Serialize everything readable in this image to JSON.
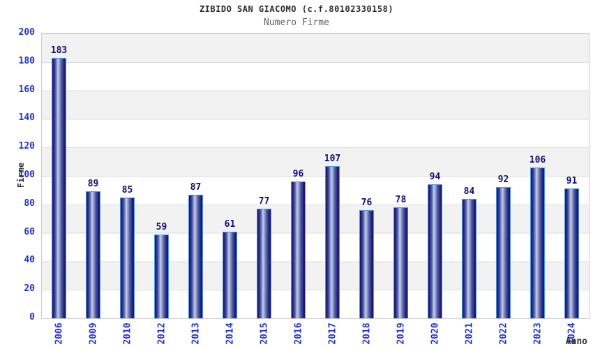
{
  "header": {
    "title": "ZIBIDO SAN GIACOMO (c.f.80102330158)",
    "subtitle": "Numero Firme"
  },
  "chart_data": {
    "type": "bar",
    "title": "ZIBIDO SAN GIACOMO (c.f.80102330158)",
    "subtitle": "Numero Firme",
    "xlabel": "Anno",
    "ylabel": "Firme",
    "categories": [
      "2006",
      "2009",
      "2010",
      "2012",
      "2013",
      "2014",
      "2015",
      "2016",
      "2017",
      "2018",
      "2019",
      "2020",
      "2021",
      "2022",
      "2023",
      "2024"
    ],
    "values": [
      183,
      89,
      85,
      59,
      87,
      61,
      77,
      96,
      107,
      76,
      78,
      94,
      84,
      92,
      106,
      91
    ],
    "ylim": [
      0,
      200
    ],
    "y_ticks": [
      0,
      20,
      40,
      60,
      80,
      100,
      120,
      140,
      160,
      180,
      200
    ],
    "grid": "horizontal-bands-every-20",
    "legend": "none",
    "colors": {
      "bar_edge_dark": "#15155f",
      "bar_highlight": "#c9cfe9",
      "bar_outline": "#4f97e3",
      "tick_label_blue": "#2233cc",
      "value_label_navy": "#0f0f78",
      "band_gray": "#f2f2f2",
      "band_white": "#ffffff",
      "gridline": "#dcdcdc",
      "plot_border": "#cccccc",
      "title_color": "#2b2b2b",
      "subtitle_color": "#616161",
      "axis_title_color": "#333333"
    }
  }
}
